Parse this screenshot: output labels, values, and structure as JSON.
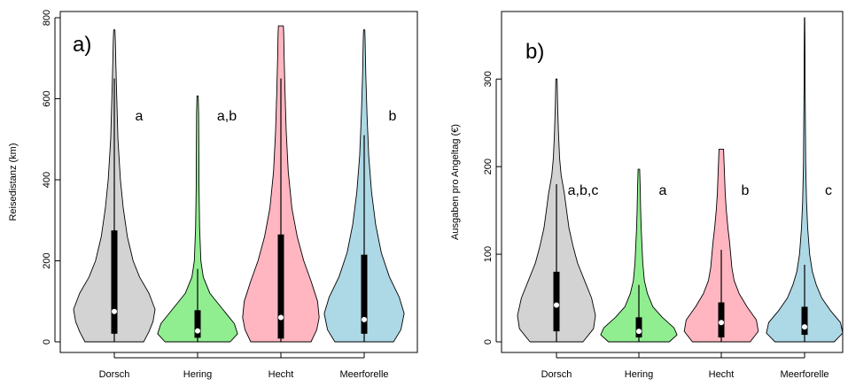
{
  "chart_data": [
    {
      "type": "violin",
      "panel_label": "a)",
      "xlabel": "",
      "ylabel": "Reisedistanz (km)",
      "ylim": [
        0,
        800
      ],
      "yticks": [
        0,
        200,
        400,
        600,
        800
      ],
      "categories": [
        "Dorsch",
        "Hering",
        "Hecht",
        "Meerforelle"
      ],
      "colors": [
        "#d3d3d3",
        "#90ee90",
        "#ffb6c1",
        "#add8e6"
      ],
      "significance_labels": [
        "a",
        "a,b",
        "",
        "b"
      ],
      "violins": [
        {
          "name": "Dorsch",
          "min": 0,
          "max": 770,
          "q1": 20,
          "median": 75,
          "q3": 275,
          "whisker_low": 0,
          "whisker_high": 650,
          "density": [
            [
              0,
              0.72
            ],
            [
              25,
              0.85
            ],
            [
              50,
              0.95
            ],
            [
              80,
              1.0
            ],
            [
              120,
              0.85
            ],
            [
              160,
              0.62
            ],
            [
              200,
              0.46
            ],
            [
              260,
              0.32
            ],
            [
              330,
              0.22
            ],
            [
              400,
              0.15
            ],
            [
              500,
              0.09
            ],
            [
              600,
              0.06
            ],
            [
              680,
              0.04
            ],
            [
              740,
              0.025
            ],
            [
              770,
              0.015
            ]
          ]
        },
        {
          "name": "Hering",
          "min": 0,
          "max": 607,
          "q1": 10,
          "median": 27,
          "q3": 78,
          "whisker_low": 0,
          "whisker_high": 180,
          "density": [
            [
              0,
              0.8
            ],
            [
              20,
              0.98
            ],
            [
              45,
              0.9
            ],
            [
              80,
              0.62
            ],
            [
              120,
              0.3
            ],
            [
              160,
              0.14
            ],
            [
              200,
              0.08
            ],
            [
              280,
              0.05
            ],
            [
              380,
              0.035
            ],
            [
              480,
              0.03
            ],
            [
              560,
              0.025
            ],
            [
              607,
              0.015
            ]
          ]
        },
        {
          "name": "Hecht",
          "min": 0,
          "max": 780,
          "q1": 8,
          "median": 60,
          "q3": 265,
          "whisker_low": 0,
          "whisker_high": 650,
          "density": [
            [
              0,
              0.74
            ],
            [
              30,
              0.88
            ],
            [
              60,
              0.94
            ],
            [
              100,
              0.9
            ],
            [
              150,
              0.74
            ],
            [
              200,
              0.56
            ],
            [
              260,
              0.4
            ],
            [
              330,
              0.27
            ],
            [
              420,
              0.18
            ],
            [
              520,
              0.13
            ],
            [
              620,
              0.1
            ],
            [
              700,
              0.08
            ],
            [
              760,
              0.07
            ],
            [
              780,
              0.06
            ]
          ]
        },
        {
          "name": "Meerforelle",
          "min": 0,
          "max": 770,
          "q1": 20,
          "median": 55,
          "q3": 215,
          "whisker_low": 0,
          "whisker_high": 510,
          "density": [
            [
              0,
              0.72
            ],
            [
              30,
              0.9
            ],
            [
              70,
              0.98
            ],
            [
              110,
              0.86
            ],
            [
              160,
              0.62
            ],
            [
              220,
              0.42
            ],
            [
              290,
              0.28
            ],
            [
              370,
              0.18
            ],
            [
              460,
              0.11
            ],
            [
              560,
              0.07
            ],
            [
              660,
              0.04
            ],
            [
              740,
              0.025
            ],
            [
              770,
              0.015
            ]
          ]
        }
      ]
    },
    {
      "type": "violin",
      "panel_label": "b)",
      "xlabel": "",
      "ylabel": "Ausgaben pro Angeltag (€)",
      "ylim": [
        0,
        370
      ],
      "yticks": [
        0,
        100,
        200,
        300
      ],
      "categories": [
        "Dorsch",
        "Hering",
        "Hecht",
        "Meerforelle"
      ],
      "colors": [
        "#d3d3d3",
        "#90ee90",
        "#ffb6c1",
        "#add8e6"
      ],
      "significance_labels": [
        "a,b,c",
        "a",
        "b",
        "c"
      ],
      "violins": [
        {
          "name": "Dorsch",
          "min": 0,
          "max": 300,
          "q1": 12,
          "median": 42,
          "q3": 80,
          "whisker_low": 0,
          "whisker_high": 180,
          "density": [
            [
              0,
              0.68
            ],
            [
              15,
              0.95
            ],
            [
              30,
              1.0
            ],
            [
              50,
              0.9
            ],
            [
              70,
              0.72
            ],
            [
              90,
              0.54
            ],
            [
              110,
              0.42
            ],
            [
              130,
              0.32
            ],
            [
              150,
              0.26
            ],
            [
              170,
              0.2
            ],
            [
              190,
              0.12
            ],
            [
              210,
              0.08
            ],
            [
              240,
              0.05
            ],
            [
              270,
              0.03
            ],
            [
              300,
              0.015
            ]
          ]
        },
        {
          "name": "Hering",
          "min": 0,
          "max": 197,
          "q1": 5,
          "median": 12,
          "q3": 28,
          "whisker_low": 0,
          "whisker_high": 65,
          "density": [
            [
              0,
              0.78
            ],
            [
              8,
              0.98
            ],
            [
              16,
              0.9
            ],
            [
              28,
              0.6
            ],
            [
              40,
              0.36
            ],
            [
              55,
              0.22
            ],
            [
              70,
              0.14
            ],
            [
              90,
              0.1
            ],
            [
              110,
              0.08
            ],
            [
              130,
              0.06
            ],
            [
              150,
              0.045
            ],
            [
              175,
              0.035
            ],
            [
              197,
              0.02
            ]
          ]
        },
        {
          "name": "Hecht",
          "min": 0,
          "max": 220,
          "q1": 5,
          "median": 22,
          "q3": 45,
          "whisker_low": 0,
          "whisker_high": 105,
          "density": [
            [
              0,
              0.74
            ],
            [
              12,
              0.95
            ],
            [
              25,
              0.9
            ],
            [
              40,
              0.66
            ],
            [
              55,
              0.46
            ],
            [
              70,
              0.33
            ],
            [
              85,
              0.27
            ],
            [
              100,
              0.24
            ],
            [
              115,
              0.21
            ],
            [
              130,
              0.17
            ],
            [
              150,
              0.13
            ],
            [
              170,
              0.1
            ],
            [
              190,
              0.085
            ],
            [
              205,
              0.07
            ],
            [
              220,
              0.06
            ]
          ]
        },
        {
          "name": "Meerforelle",
          "min": 0,
          "max": 370,
          "q1": 8,
          "median": 17,
          "q3": 40,
          "whisker_low": 0,
          "whisker_high": 88,
          "density": [
            [
              0,
              0.76
            ],
            [
              10,
              0.98
            ],
            [
              22,
              0.92
            ],
            [
              36,
              0.66
            ],
            [
              50,
              0.44
            ],
            [
              65,
              0.3
            ],
            [
              80,
              0.2
            ],
            [
              100,
              0.13
            ],
            [
              130,
              0.08
            ],
            [
              160,
              0.05
            ],
            [
              200,
              0.03
            ],
            [
              250,
              0.02
            ],
            [
              300,
              0.012
            ],
            [
              340,
              0.008
            ],
            [
              370,
              0.004
            ]
          ]
        }
      ]
    }
  ]
}
